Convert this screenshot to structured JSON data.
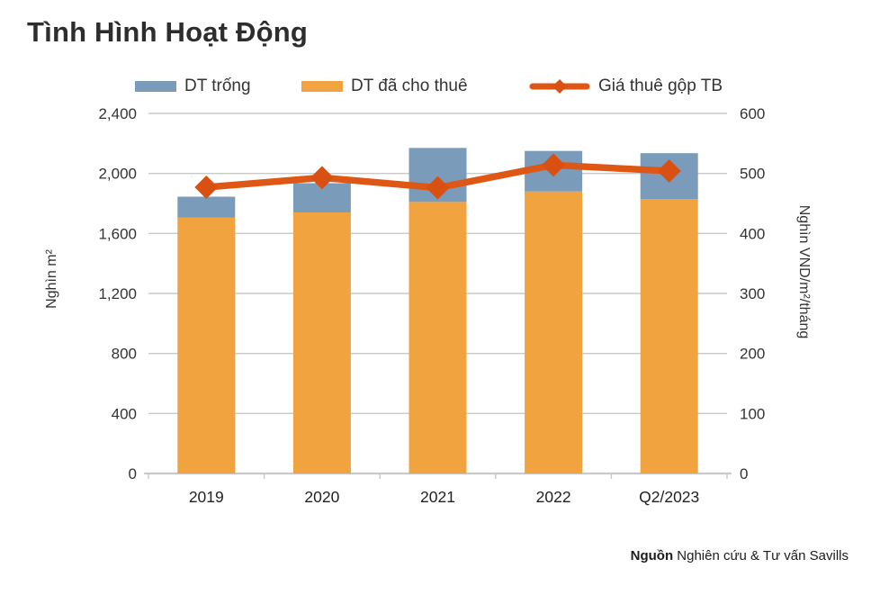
{
  "title": "Tình Hình Hoạt Động",
  "legend": [
    {
      "label": "DT trống",
      "color": "#7A9CBA",
      "type": "bar"
    },
    {
      "label": "DT đã cho thuê",
      "color": "#F0A33E",
      "type": "bar"
    },
    {
      "label": "Giá thuê gộp TB",
      "color": "#DE5715",
      "marker_color": "#D85112",
      "type": "line"
    }
  ],
  "source": {
    "prefix": "Nguồn",
    "text": " Nghiên cứu & Tư vấn Savills"
  },
  "chart_data": {
    "type": "combo-stacked-bar-line",
    "categories": [
      "2019",
      "2020",
      "2021",
      "2022",
      "Q2/2023"
    ],
    "series": [
      {
        "name": "DT trống",
        "type": "bar",
        "stack": "area",
        "axis": "left",
        "color": "#7A9CBA",
        "values": [
          140,
          195,
          360,
          270,
          305
        ]
      },
      {
        "name": "DT đã cho thuê",
        "type": "bar",
        "stack": "area",
        "axis": "left",
        "color": "#F0A33E",
        "values": [
          1705,
          1740,
          1810,
          1880,
          1830
        ]
      },
      {
        "name": "Giá thuê gộp TB",
        "type": "line",
        "axis": "right",
        "color": "#DE5715",
        "marker": "diamond",
        "marker_color": "#D85112",
        "values": [
          477,
          493,
          476,
          514,
          504
        ]
      }
    ],
    "stacked_totals": [
      1845,
      1935,
      2170,
      2150,
      2135
    ],
    "left_axis": {
      "title": "Nghìn m²",
      "min": 0,
      "max": 2400,
      "step": 400,
      "ticks": [
        "0",
        "400",
        "800",
        "1,200",
        "1,600",
        "2,000",
        "2,400"
      ]
    },
    "right_axis": {
      "title": "Nghìn VND/m²/tháng",
      "min": 0,
      "max": 600,
      "step": 100,
      "ticks": [
        "0",
        "100",
        "200",
        "300",
        "400",
        "500",
        "600"
      ]
    },
    "grid": true,
    "gridline_color": "#C9C9C9",
    "legend_position": "top",
    "text_color": "#333333"
  }
}
